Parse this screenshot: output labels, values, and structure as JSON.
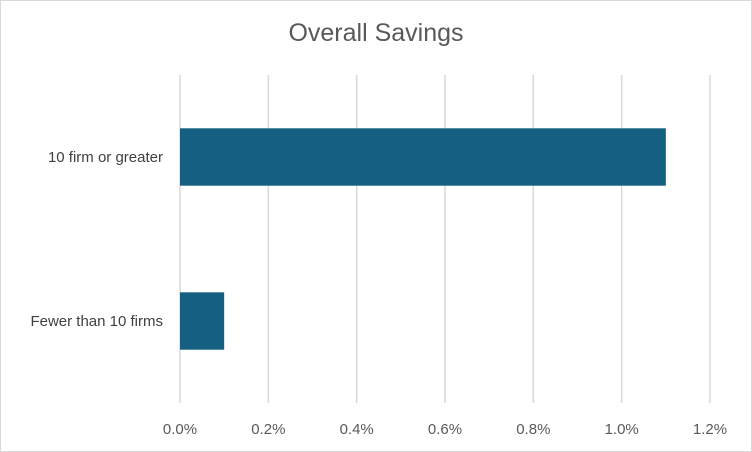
{
  "chart_data": {
    "type": "bar",
    "orientation": "horizontal",
    "title": "Overall Savings",
    "categories": [
      "10 firm or greater",
      "Fewer than 10 firms"
    ],
    "values": [
      0.011,
      0.001
    ],
    "xlim": [
      0,
      0.012
    ],
    "ticks": [
      0.0,
      0.002,
      0.004,
      0.006,
      0.008,
      0.01,
      0.012
    ],
    "tick_labels": [
      "0.0%",
      "0.2%",
      "0.4%",
      "0.6%",
      "0.8%",
      "1.0%",
      "1.2%"
    ],
    "grid": true,
    "legend": "none",
    "bar_color": "#156082",
    "grid_color": "#d9d9d9"
  }
}
